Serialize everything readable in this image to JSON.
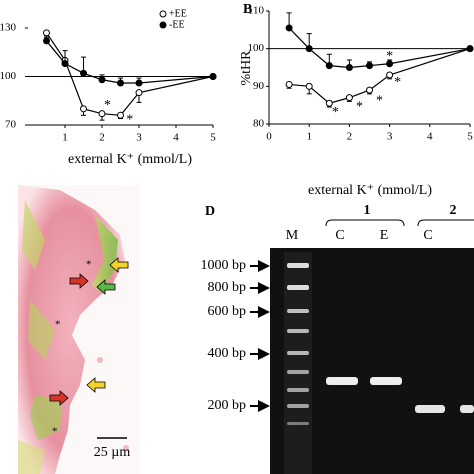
{
  "chart_data": [
    {
      "type": "line",
      "xlabel": "external K⁺ (mmol/L)",
      "x": [
        0.5,
        1,
        1.5,
        2,
        2.5,
        3,
        5
      ],
      "series": [
        {
          "name": "+EE",
          "color": "#000000",
          "marker": "open",
          "error_direction": "down",
          "values": [
            127,
            110,
            80,
            77,
            76,
            90,
            100
          ],
          "errors": [
            3,
            0,
            4,
            4,
            2,
            6,
            0
          ]
        },
        {
          "name": "-EE",
          "color": "#000000",
          "marker": "filled",
          "error_direction": "up",
          "values": [
            122,
            108,
            102,
            98,
            96,
            96,
            100
          ],
          "errors": [
            3,
            8,
            10,
            3,
            3,
            3,
            0
          ]
        }
      ],
      "xlim": [
        0,
        5
      ],
      "xticks": [
        1,
        2,
        3,
        4,
        5
      ],
      "ylim": [
        70,
        130
      ],
      "yticks": [
        70,
        100,
        130
      ],
      "hline": 100,
      "legend": true,
      "legend_location": "upper right",
      "annotations": [
        {
          "text": "*",
          "x": 2.15,
          "y": 82
        },
        {
          "text": "*",
          "x": 2.75,
          "y": 73
        }
      ]
    },
    {
      "type": "line",
      "panel_label": "B",
      "ylabel": "%tHR",
      "xlabel": "external K⁺ (mmol/L)",
      "x": [
        0.5,
        1,
        1.5,
        2,
        2.5,
        3,
        5
      ],
      "series": [
        {
          "name": "+EE",
          "color": "#000000",
          "marker": "open",
          "error_direction": "down",
          "values": [
            90.5,
            90,
            85.5,
            87,
            89,
            93,
            100
          ],
          "errors": [
            1,
            2,
            1,
            1,
            1,
            1,
            0
          ]
        },
        {
          "name": "-EE",
          "color": "#000000",
          "marker": "filled",
          "error_direction": "up",
          "values": [
            105.5,
            100,
            95.5,
            95,
            95.5,
            96,
            100
          ],
          "errors": [
            4,
            4,
            3,
            2,
            1,
            1,
            0
          ]
        }
      ],
      "xlim": [
        0,
        5
      ],
      "xticks": [
        0,
        1,
        2,
        3,
        4,
        5
      ],
      "ylim": [
        80,
        110
      ],
      "yticks": [
        80,
        90,
        100,
        110
      ],
      "hline": 100,
      "legend": false,
      "annotations": [
        {
          "text": "*",
          "x": 1.65,
          "y": 83
        },
        {
          "text": "*",
          "x": 2.25,
          "y": 84.5
        },
        {
          "text": "*",
          "x": 2.75,
          "y": 86
        },
        {
          "text": "*",
          "x": 3.2,
          "y": 91
        },
        {
          "text": "*",
          "x": 3,
          "y": 97.8
        }
      ]
    }
  ],
  "micrograph": {
    "scale_bar": "25 µm"
  },
  "gel": {
    "panel_label": "D",
    "groups": [
      "1",
      "2"
    ],
    "lanes": [
      "M",
      "C",
      "E",
      "C"
    ],
    "markers": [
      "1000 bp",
      "800 bp",
      "600 bp",
      "400 bp",
      "200 bp"
    ]
  }
}
